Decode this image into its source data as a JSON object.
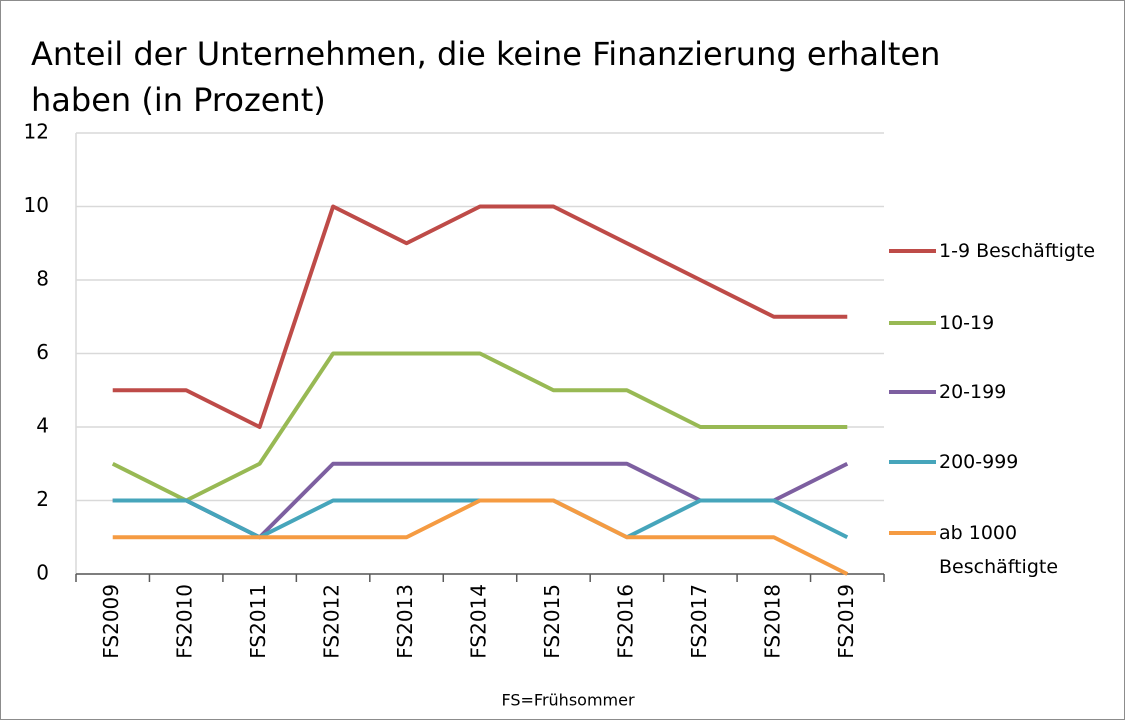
{
  "chart_data": {
    "type": "line",
    "title": "Anteil der Unternehmen, die keine Finanzierung erhalten haben (in Prozent)",
    "x_label": "FS=Frühsommer",
    "categories": [
      "FS2009",
      "FS2010",
      "FS2011",
      "FS2012",
      "FS2013",
      "FS2014",
      "FS2015",
      "FS2016",
      "FS2017",
      "FS2018",
      "FS2019"
    ],
    "series": [
      {
        "name": "1-9 Beschäftigte",
        "color": "#be4b48",
        "values": [
          5,
          5,
          4,
          10,
          9,
          10,
          10,
          9,
          8,
          7,
          7
        ]
      },
      {
        "name": "10-19",
        "color": "#98b954",
        "values": [
          3,
          2,
          3,
          6,
          6,
          6,
          5,
          5,
          4,
          4,
          4
        ]
      },
      {
        "name": "20-199",
        "color": "#7d5fa0",
        "values": [
          2,
          2,
          1,
          3,
          3,
          3,
          3,
          3,
          2,
          2,
          3
        ]
      },
      {
        "name": "200-999",
        "color": "#46a5bb",
        "values": [
          2,
          2,
          1,
          2,
          2,
          2,
          2,
          1,
          2,
          2,
          1
        ]
      },
      {
        "name": "ab 1000 Beschäftigte",
        "color": "#f59b42",
        "values": [
          1,
          1,
          1,
          1,
          1,
          2,
          2,
          1,
          1,
          1,
          0
        ]
      }
    ],
    "ylim": [
      0,
      12
    ],
    "yticks": [
      0,
      2,
      4,
      6,
      8,
      10,
      12
    ],
    "grid": true,
    "legend": "right"
  }
}
